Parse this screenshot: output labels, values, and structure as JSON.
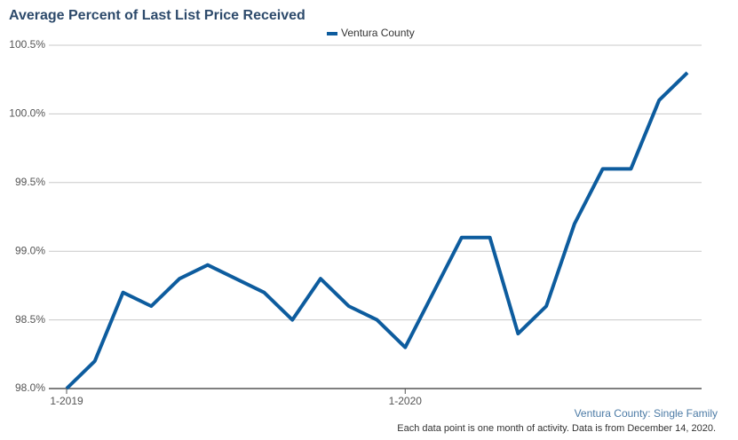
{
  "chart_data": {
    "type": "line",
    "title": "Average Percent of Last List Price Received",
    "categories": [
      "1-2019",
      null,
      null,
      null,
      null,
      null,
      null,
      null,
      null,
      null,
      null,
      null,
      "1-2020",
      null,
      null,
      null,
      null,
      null,
      null,
      null,
      null,
      null,
      null
    ],
    "series": [
      {
        "name": "Ventura County",
        "color": "#0d5c9e",
        "values": [
          98.0,
          98.2,
          98.7,
          98.6,
          98.8,
          98.9,
          98.8,
          98.7,
          98.5,
          98.8,
          98.6,
          98.5,
          98.3,
          98.7,
          99.1,
          99.1,
          98.4,
          98.6,
          99.2,
          99.6,
          99.6,
          100.1,
          100.3
        ]
      }
    ],
    "ylim": [
      98.0,
      100.5
    ],
    "yticks": [
      {
        "value": 98.0,
        "label": "98.0%"
      },
      {
        "value": 98.5,
        "label": "98.5%"
      },
      {
        "value": 99.0,
        "label": "99.0%"
      },
      {
        "value": 99.5,
        "label": "99.5%"
      },
      {
        "value": 100.0,
        "label": "100.0%"
      },
      {
        "value": 100.5,
        "label": "100.5%"
      }
    ],
    "grid": true,
    "legend": "top",
    "source": "Ventura County: Single Family",
    "note": "Each data point is one month of activity. Data is from December 14, 2020."
  }
}
